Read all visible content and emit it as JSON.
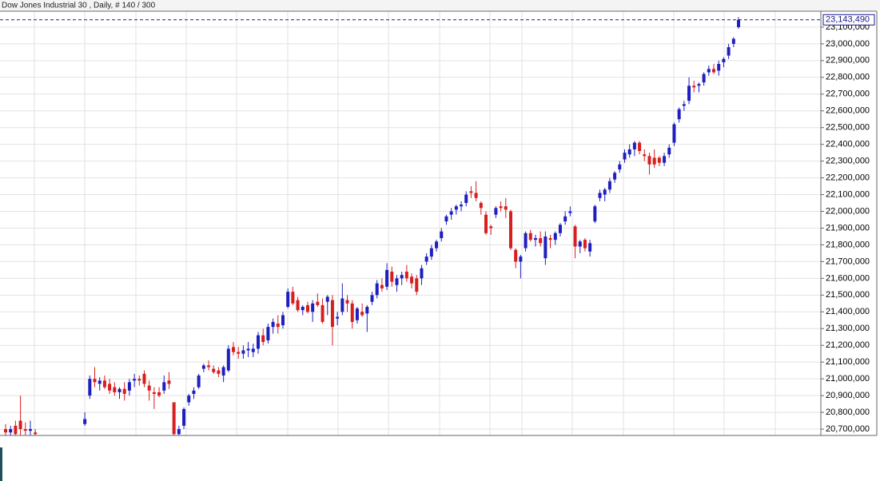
{
  "chart_data": {
    "type": "candlestick",
    "title": "Dow Jones Industrial 30 , Daily, # 140 / 300",
    "up_color": "#1f1fc0",
    "down_color": "#d81e1e",
    "grid": true,
    "ylim": [
      20662000,
      23195000
    ],
    "yticks": [
      {
        "value": 20700000,
        "label": "20,700,000"
      },
      {
        "value": 20800000,
        "label": "20,800,000"
      },
      {
        "value": 20900000,
        "label": "20,900,000"
      },
      {
        "value": 21000000,
        "label": "21,000,000"
      },
      {
        "value": 21100000,
        "label": "21,100,000"
      },
      {
        "value": 21200000,
        "label": "21,200,000"
      },
      {
        "value": 21300000,
        "label": "21,300,000"
      },
      {
        "value": 21400000,
        "label": "21,400,000"
      },
      {
        "value": 21500000,
        "label": "21,500,000"
      },
      {
        "value": 21600000,
        "label": "21,600,000"
      },
      {
        "value": 21700000,
        "label": "21,700,000"
      },
      {
        "value": 21800000,
        "label": "21,800,000"
      },
      {
        "value": 21900000,
        "label": "21,900,000"
      },
      {
        "value": 22000000,
        "label": "22,000,000"
      },
      {
        "value": 22100000,
        "label": "22,100,000"
      },
      {
        "value": 22200000,
        "label": "22,200,000"
      },
      {
        "value": 22300000,
        "label": "22,300,000"
      },
      {
        "value": 22400000,
        "label": "22,400,000"
      },
      {
        "value": 22500000,
        "label": "22,500,000"
      },
      {
        "value": 22600000,
        "label": "22,600,000"
      },
      {
        "value": 22700000,
        "label": "22,700,000"
      },
      {
        "value": 22800000,
        "label": "22,800,000"
      },
      {
        "value": 22900000,
        "label": "22,900,000"
      },
      {
        "value": 23000000,
        "label": "23,000,000"
      },
      {
        "value": 23100000,
        "label": "23,100,000"
      }
    ],
    "last_price": {
      "value": 23143490,
      "label": "23,143,490",
      "color": "#1a1a8c"
    },
    "open": [
      20700000,
      20680000,
      20720000,
      20750000,
      20700000,
      20690000,
      20680000,
      null,
      null,
      null,
      null,
      null,
      null,
      null,
      null,
      null,
      20730000,
      20900000,
      21000000,
      20970000,
      20990000,
      20970000,
      20950000,
      20920000,
      20940000,
      20930000,
      20990000,
      21000000,
      21030000,
      20960000,
      20920000,
      20920000,
      20930000,
      20990000,
      20860000,
      20670000,
      20720000,
      20860000,
      20910000,
      20950000,
      21060000,
      21080000,
      21060000,
      21050000,
      21020000,
      21050000,
      21190000,
      21160000,
      21150000,
      21170000,
      21160000,
      21180000,
      21260000,
      21230000,
      21310000,
      21330000,
      21320000,
      21430000,
      21520000,
      21470000,
      21410000,
      21440000,
      21400000,
      21460000,
      21440000,
      21460000,
      21470000,
      21360000,
      21400000,
      21470000,
      21450000,
      21350000,
      21400000,
      21390000,
      21460000,
      21500000,
      21560000,
      21550000,
      21640000,
      21560000,
      21600000,
      21640000,
      21610000,
      21600000,
      21600000,
      21700000,
      21730000,
      21780000,
      21840000,
      21940000,
      21980000,
      22010000,
      22030000,
      22050000,
      22120000,
      22110000,
      22050000,
      21980000,
      21910000,
      21980000,
      22030000,
      22030000,
      22000000,
      21770000,
      21700000,
      21780000,
      21870000,
      21830000,
      21840000,
      21720000,
      21840000,
      21830000,
      21870000,
      21940000,
      21990000,
      21910000,
      21790000,
      21830000,
      21760000,
      21940000,
      22080000,
      22100000,
      22130000,
      22190000,
      22250000,
      22310000,
      22340000,
      22370000,
      22410000,
      22340000,
      22330000,
      22320000,
      22320000,
      22290000,
      22340000,
      22410000,
      22550000,
      22630000,
      22660000,
      22750000,
      22750000,
      22770000,
      22830000,
      22850000,
      22840000,
      22890000,
      22930000,
      23000000,
      23100000
    ],
    "high": [
      20730000,
      20720000,
      20750000,
      20900000,
      20740000,
      20750000,
      20700000,
      null,
      null,
      null,
      null,
      null,
      null,
      null,
      null,
      null,
      20800000,
      21020000,
      21070000,
      21010000,
      21020000,
      21000000,
      20980000,
      20950000,
      20980000,
      21000000,
      21030000,
      21020000,
      21050000,
      20990000,
      20950000,
      20950000,
      21020000,
      21040000,
      20860000,
      20720000,
      20830000,
      20910000,
      20950000,
      21030000,
      21090000,
      21110000,
      21080000,
      21070000,
      21080000,
      21200000,
      21220000,
      21190000,
      21200000,
      21220000,
      21210000,
      21280000,
      21300000,
      21330000,
      21360000,
      21380000,
      21400000,
      21540000,
      21550000,
      21490000,
      21440000,
      21460000,
      21470000,
      21510000,
      21480000,
      21500000,
      21500000,
      21400000,
      21570000,
      21500000,
      21470000,
      21430000,
      21450000,
      21440000,
      21520000,
      21590000,
      21600000,
      21690000,
      21670000,
      21620000,
      21640000,
      21680000,
      21630000,
      21620000,
      21680000,
      21750000,
      21800000,
      21830000,
      21900000,
      21980000,
      22020000,
      22040000,
      22060000,
      22120000,
      22150000,
      22180000,
      22060000,
      22000000,
      21920000,
      22030000,
      22060000,
      22080000,
      22010000,
      21780000,
      21740000,
      21880000,
      21890000,
      21860000,
      21880000,
      21880000,
      21860000,
      21880000,
      21930000,
      22000000,
      22030000,
      21920000,
      21830000,
      21840000,
      21830000,
      22040000,
      22130000,
      22140000,
      22200000,
      22240000,
      22300000,
      22370000,
      22400000,
      22420000,
      22420000,
      22370000,
      22350000,
      22370000,
      22330000,
      22350000,
      22400000,
      22530000,
      22620000,
      22660000,
      22800000,
      22780000,
      22770000,
      22830000,
      22870000,
      22880000,
      22900000,
      22920000,
      23000000,
      23040000,
      23160000
    ],
    "low": [
      20650000,
      20660000,
      20660000,
      20660000,
      20660000,
      20660000,
      20650000,
      null,
      null,
      null,
      null,
      null,
      null,
      null,
      null,
      null,
      20720000,
      20880000,
      20950000,
      20930000,
      20940000,
      20910000,
      20900000,
      20880000,
      20870000,
      20900000,
      20950000,
      20960000,
      20950000,
      20870000,
      20820000,
      20890000,
      20910000,
      20940000,
      20660000,
      20660000,
      20700000,
      20840000,
      20880000,
      20940000,
      21040000,
      21050000,
      21030000,
      21010000,
      20980000,
      21040000,
      21140000,
      21120000,
      21120000,
      21130000,
      21130000,
      21150000,
      21200000,
      21210000,
      21270000,
      21270000,
      21300000,
      21420000,
      21440000,
      21400000,
      21380000,
      21390000,
      21340000,
      21430000,
      21330000,
      21380000,
      21200000,
      21320000,
      21380000,
      21400000,
      21300000,
      21330000,
      21370000,
      21280000,
      21440000,
      21480000,
      21520000,
      21530000,
      21550000,
      21520000,
      21560000,
      21580000,
      21540000,
      21500000,
      21560000,
      21680000,
      21710000,
      21760000,
      21820000,
      21920000,
      21950000,
      21980000,
      22000000,
      22030000,
      22080000,
      22060000,
      21980000,
      21860000,
      21860000,
      21960000,
      22000000,
      21960000,
      21770000,
      21660000,
      21600000,
      21760000,
      21820000,
      21790000,
      21790000,
      21680000,
      21780000,
      21800000,
      21850000,
      21920000,
      21970000,
      21720000,
      21750000,
      21760000,
      21730000,
      21930000,
      22060000,
      22060000,
      22110000,
      22170000,
      22230000,
      22290000,
      22320000,
      22330000,
      22340000,
      22300000,
      22220000,
      22260000,
      22270000,
      22270000,
      22320000,
      22390000,
      22530000,
      22600000,
      22640000,
      22710000,
      22710000,
      22750000,
      22810000,
      22820000,
      22810000,
      22860000,
      22910000,
      22980000,
      23090000
    ],
    "close": [
      20680000,
      20700000,
      20670000,
      20700000,
      20690000,
      20700000,
      20670000,
      null,
      null,
      null,
      null,
      null,
      null,
      null,
      null,
      null,
      20760000,
      21000000,
      20980000,
      20990000,
      20950000,
      20930000,
      20920000,
      20940000,
      20910000,
      20980000,
      21000000,
      20990000,
      20970000,
      20930000,
      20910000,
      20900000,
      20980000,
      20970000,
      20670000,
      20700000,
      20820000,
      20900000,
      20930000,
      21020000,
      21080000,
      21070000,
      21040000,
      21030000,
      21070000,
      21180000,
      21160000,
      21150000,
      21170000,
      21180000,
      21180000,
      21260000,
      21220000,
      21310000,
      21340000,
      21310000,
      21380000,
      21520000,
      21450000,
      21410000,
      21430000,
      21400000,
      21450000,
      21440000,
      21340000,
      21490000,
      21310000,
      21370000,
      21480000,
      21450000,
      21340000,
      21420000,
      21380000,
      21430000,
      21500000,
      21570000,
      21540000,
      21650000,
      21580000,
      21600000,
      21620000,
      21600000,
      21570000,
      21520000,
      21660000,
      21730000,
      21780000,
      21820000,
      21880000,
      21970000,
      22000000,
      22030000,
      22040000,
      22100000,
      22110000,
      22080000,
      22020000,
      21870000,
      21900000,
      22020000,
      22020000,
      22010000,
      21780000,
      21700000,
      21730000,
      21870000,
      21830000,
      21840000,
      21810000,
      21850000,
      21830000,
      21870000,
      21920000,
      21970000,
      22000000,
      21790000,
      21820000,
      21780000,
      21810000,
      22030000,
      22110000,
      22130000,
      22180000,
      22230000,
      22280000,
      22350000,
      22370000,
      22410000,
      22360000,
      22330000,
      22280000,
      22280000,
      22290000,
      22330000,
      22380000,
      22520000,
      22610000,
      22640000,
      22750000,
      22740000,
      22760000,
      22820000,
      22850000,
      22830000,
      22880000,
      22910000,
      22980000,
      23030000,
      23143490
    ]
  }
}
